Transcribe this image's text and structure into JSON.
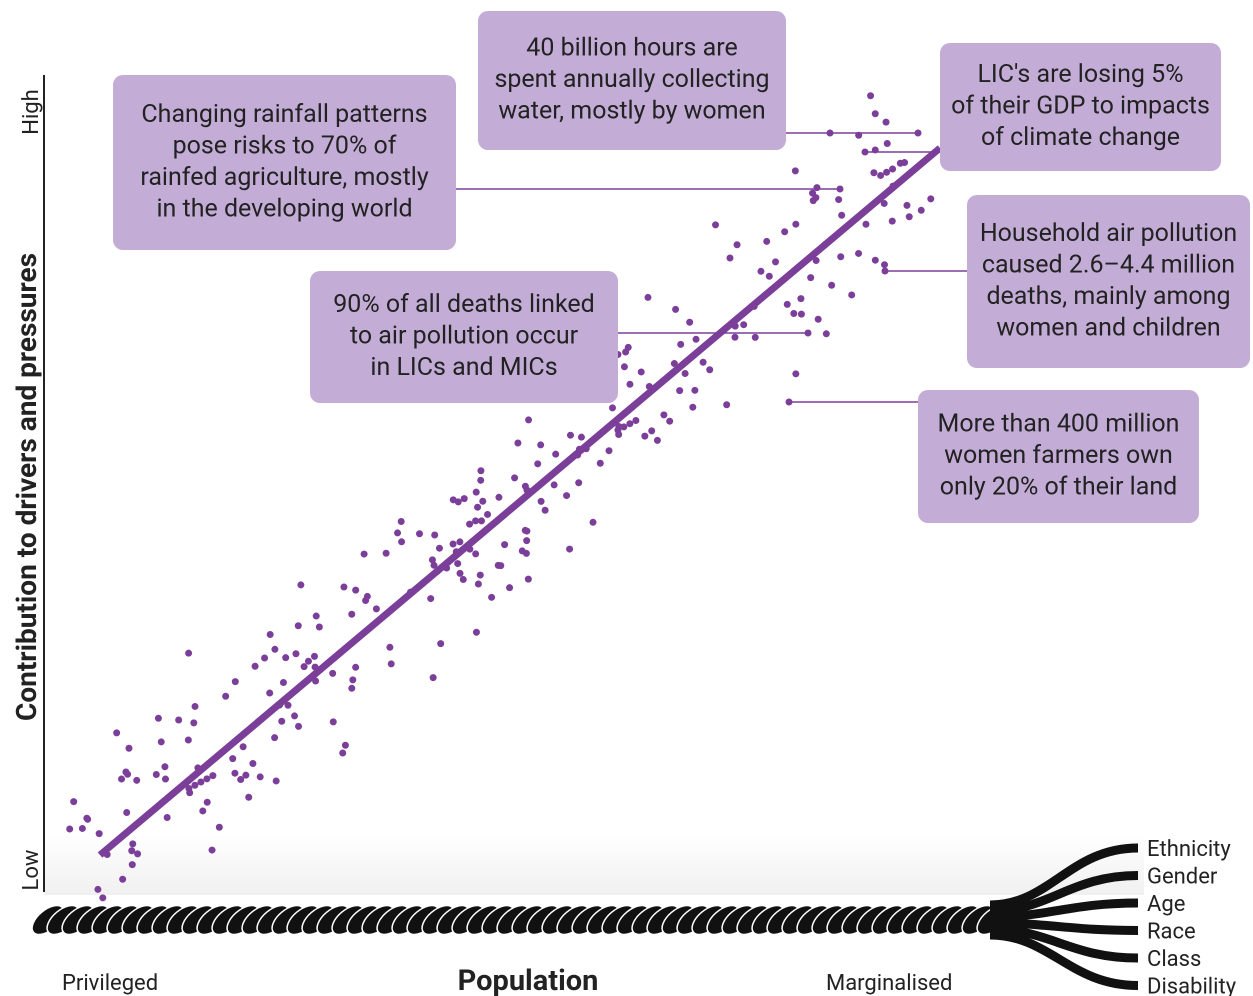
{
  "axis": {
    "y_label": "Contribution to drivers and pressures",
    "y_high": "High",
    "y_low": "Low",
    "x_label": "Population",
    "x_left": "Privileged",
    "x_right": "Marginalised"
  },
  "annotations": [
    {
      "lines": [
        "40 billion hours are",
        "spent annually collecting",
        "water, mostly by women"
      ]
    },
    {
      "lines": [
        "Changing rainfall patterns",
        "pose risks to 70% of",
        "rainfed agriculture, mostly",
        "in the developing world"
      ]
    },
    {
      "lines": [
        "LIC's are losing 5%",
        "of their GDP to impacts",
        "of climate change"
      ]
    },
    {
      "lines": [
        "Household air pollution",
        "caused 2.6–4.4 million",
        "deaths, mainly among",
        "women and children"
      ]
    },
    {
      "lines": [
        "90% of all deaths linked",
        "to air pollution occur",
        "in LICs and MICs"
      ]
    },
    {
      "lines": [
        "More than 400 million",
        "women farmers own",
        "only 20% of their land"
      ]
    }
  ],
  "rope_strands": [
    "Ethnicity",
    "Gender",
    "Age",
    "Race",
    "Class",
    "Disability"
  ]
}
